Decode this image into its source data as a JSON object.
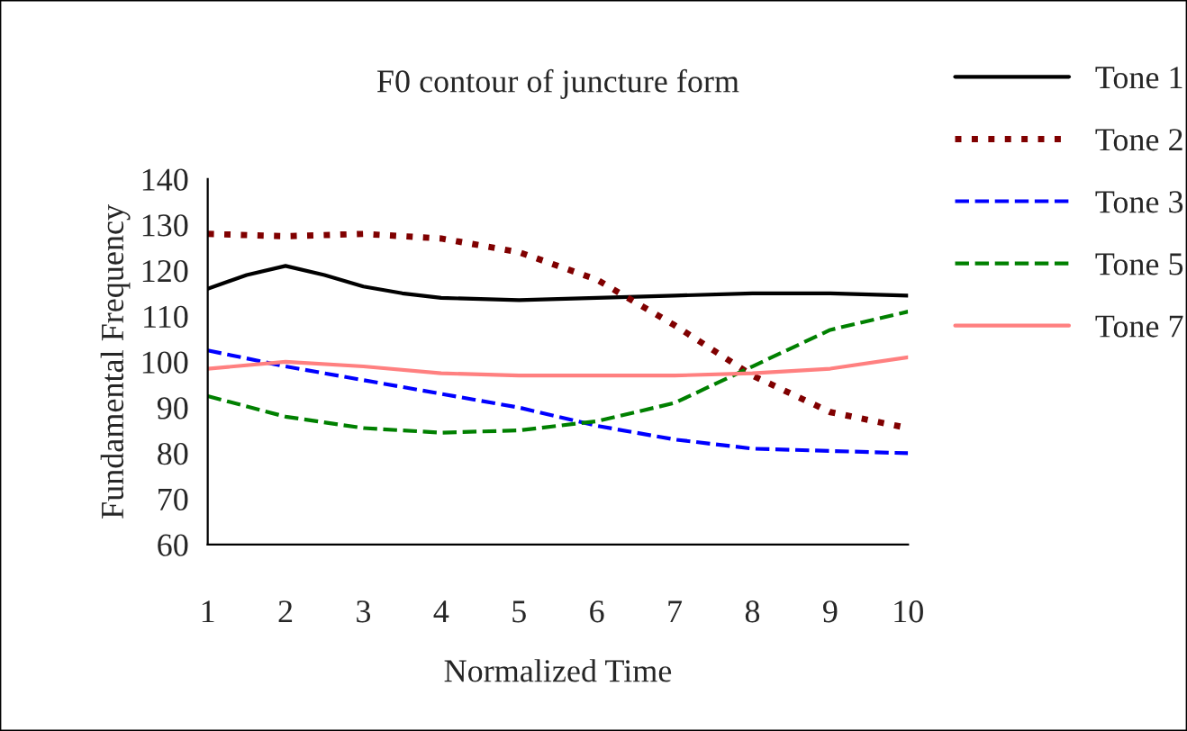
{
  "chart_data": {
    "type": "line",
    "title": "F0 contour of juncture form",
    "xlabel": "Normalized Time",
    "ylabel": "Fundamental Frequency",
    "xlim": [
      1,
      10
    ],
    "xticks": [
      1,
      2,
      3,
      4,
      5,
      6,
      7,
      8,
      9,
      10
    ],
    "ylim": [
      60,
      140
    ],
    "yticks": [
      60,
      70,
      80,
      90,
      100,
      110,
      120,
      130,
      140
    ],
    "grid": false,
    "legend": "right",
    "marker": "none",
    "series": [
      {
        "name": "Tone 1",
        "color": "#000000",
        "line_style": "solid",
        "x": [
          1,
          1.5,
          2,
          2.5,
          3,
          3.5,
          4,
          5,
          6,
          7,
          8,
          9,
          10
        ],
        "values": [
          116,
          119,
          121,
          119,
          116.5,
          115,
          114,
          113.5,
          114,
          114.5,
          115,
          115,
          114.5
        ]
      },
      {
        "name": "Tone 2",
        "color": "#800000",
        "line_style": "dotted",
        "x": [
          1,
          2,
          3,
          4,
          5,
          6,
          7,
          8,
          9,
          10
        ],
        "values": [
          128,
          127.5,
          128,
          127,
          124,
          118,
          108,
          97,
          89,
          85.5
        ]
      },
      {
        "name": "Tone 3",
        "color": "#0000ff",
        "line_style": "dashed",
        "x": [
          1,
          2,
          3,
          4,
          5,
          6,
          7,
          8,
          9,
          10
        ],
        "values": [
          102.5,
          99,
          96,
          93,
          90,
          86,
          83,
          81,
          80.5,
          80
        ]
      },
      {
        "name": "Tone 5",
        "color": "#008000",
        "line_style": "dashed",
        "x": [
          1,
          2,
          3,
          4,
          5,
          6,
          7,
          8,
          9,
          10
        ],
        "values": [
          92.5,
          88,
          85.5,
          84.5,
          85,
          87,
          91,
          99,
          107,
          111
        ]
      },
      {
        "name": "Tone 7",
        "color": "#ff8080",
        "line_style": "solid",
        "x": [
          1,
          2,
          3,
          4,
          5,
          6,
          7,
          8,
          9,
          10
        ],
        "values": [
          98.5,
          100,
          99,
          97.5,
          97,
          97,
          97,
          97.5,
          98.5,
          101
        ]
      }
    ]
  }
}
